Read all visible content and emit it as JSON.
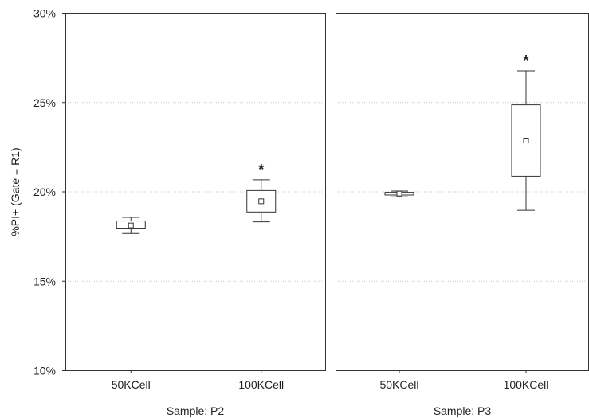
{
  "chart_data": [
    {
      "type": "box",
      "xlabel": "Sample: P2",
      "ylabel": "%PI+ (Gate = R1)",
      "ylim": [
        10,
        30
      ],
      "yticks": [
        "10%",
        "15%",
        "20%",
        "25%",
        "30%"
      ],
      "ytick_values": [
        10,
        15,
        20,
        25,
        30
      ],
      "grid": "horizontal dotted",
      "categories": [
        "50KCell",
        "100KCell"
      ],
      "boxes": [
        {
          "category": "50KCell",
          "whisker_low": 17.65,
          "q1": 17.95,
          "center": 18.1,
          "q3": 18.35,
          "whisker_high": 18.55,
          "marker": ""
        },
        {
          "category": "100KCell",
          "whisker_low": 18.3,
          "q1": 18.85,
          "center": 19.45,
          "q3": 20.05,
          "whisker_high": 20.65,
          "marker": "*"
        }
      ]
    },
    {
      "type": "box",
      "xlabel": "Sample: P3",
      "ylim": [
        10,
        30
      ],
      "grid": "horizontal dotted",
      "categories": [
        "50KCell",
        "100KCell"
      ],
      "boxes": [
        {
          "category": "50KCell",
          "whisker_low": 19.7,
          "q1": 19.8,
          "center": 19.88,
          "q3": 19.95,
          "whisker_high": 20.02,
          "marker": ""
        },
        {
          "category": "100KCell",
          "whisker_low": 18.95,
          "q1": 20.85,
          "center": 22.85,
          "q3": 24.85,
          "whisker_high": 26.75,
          "marker": "*"
        }
      ]
    }
  ]
}
